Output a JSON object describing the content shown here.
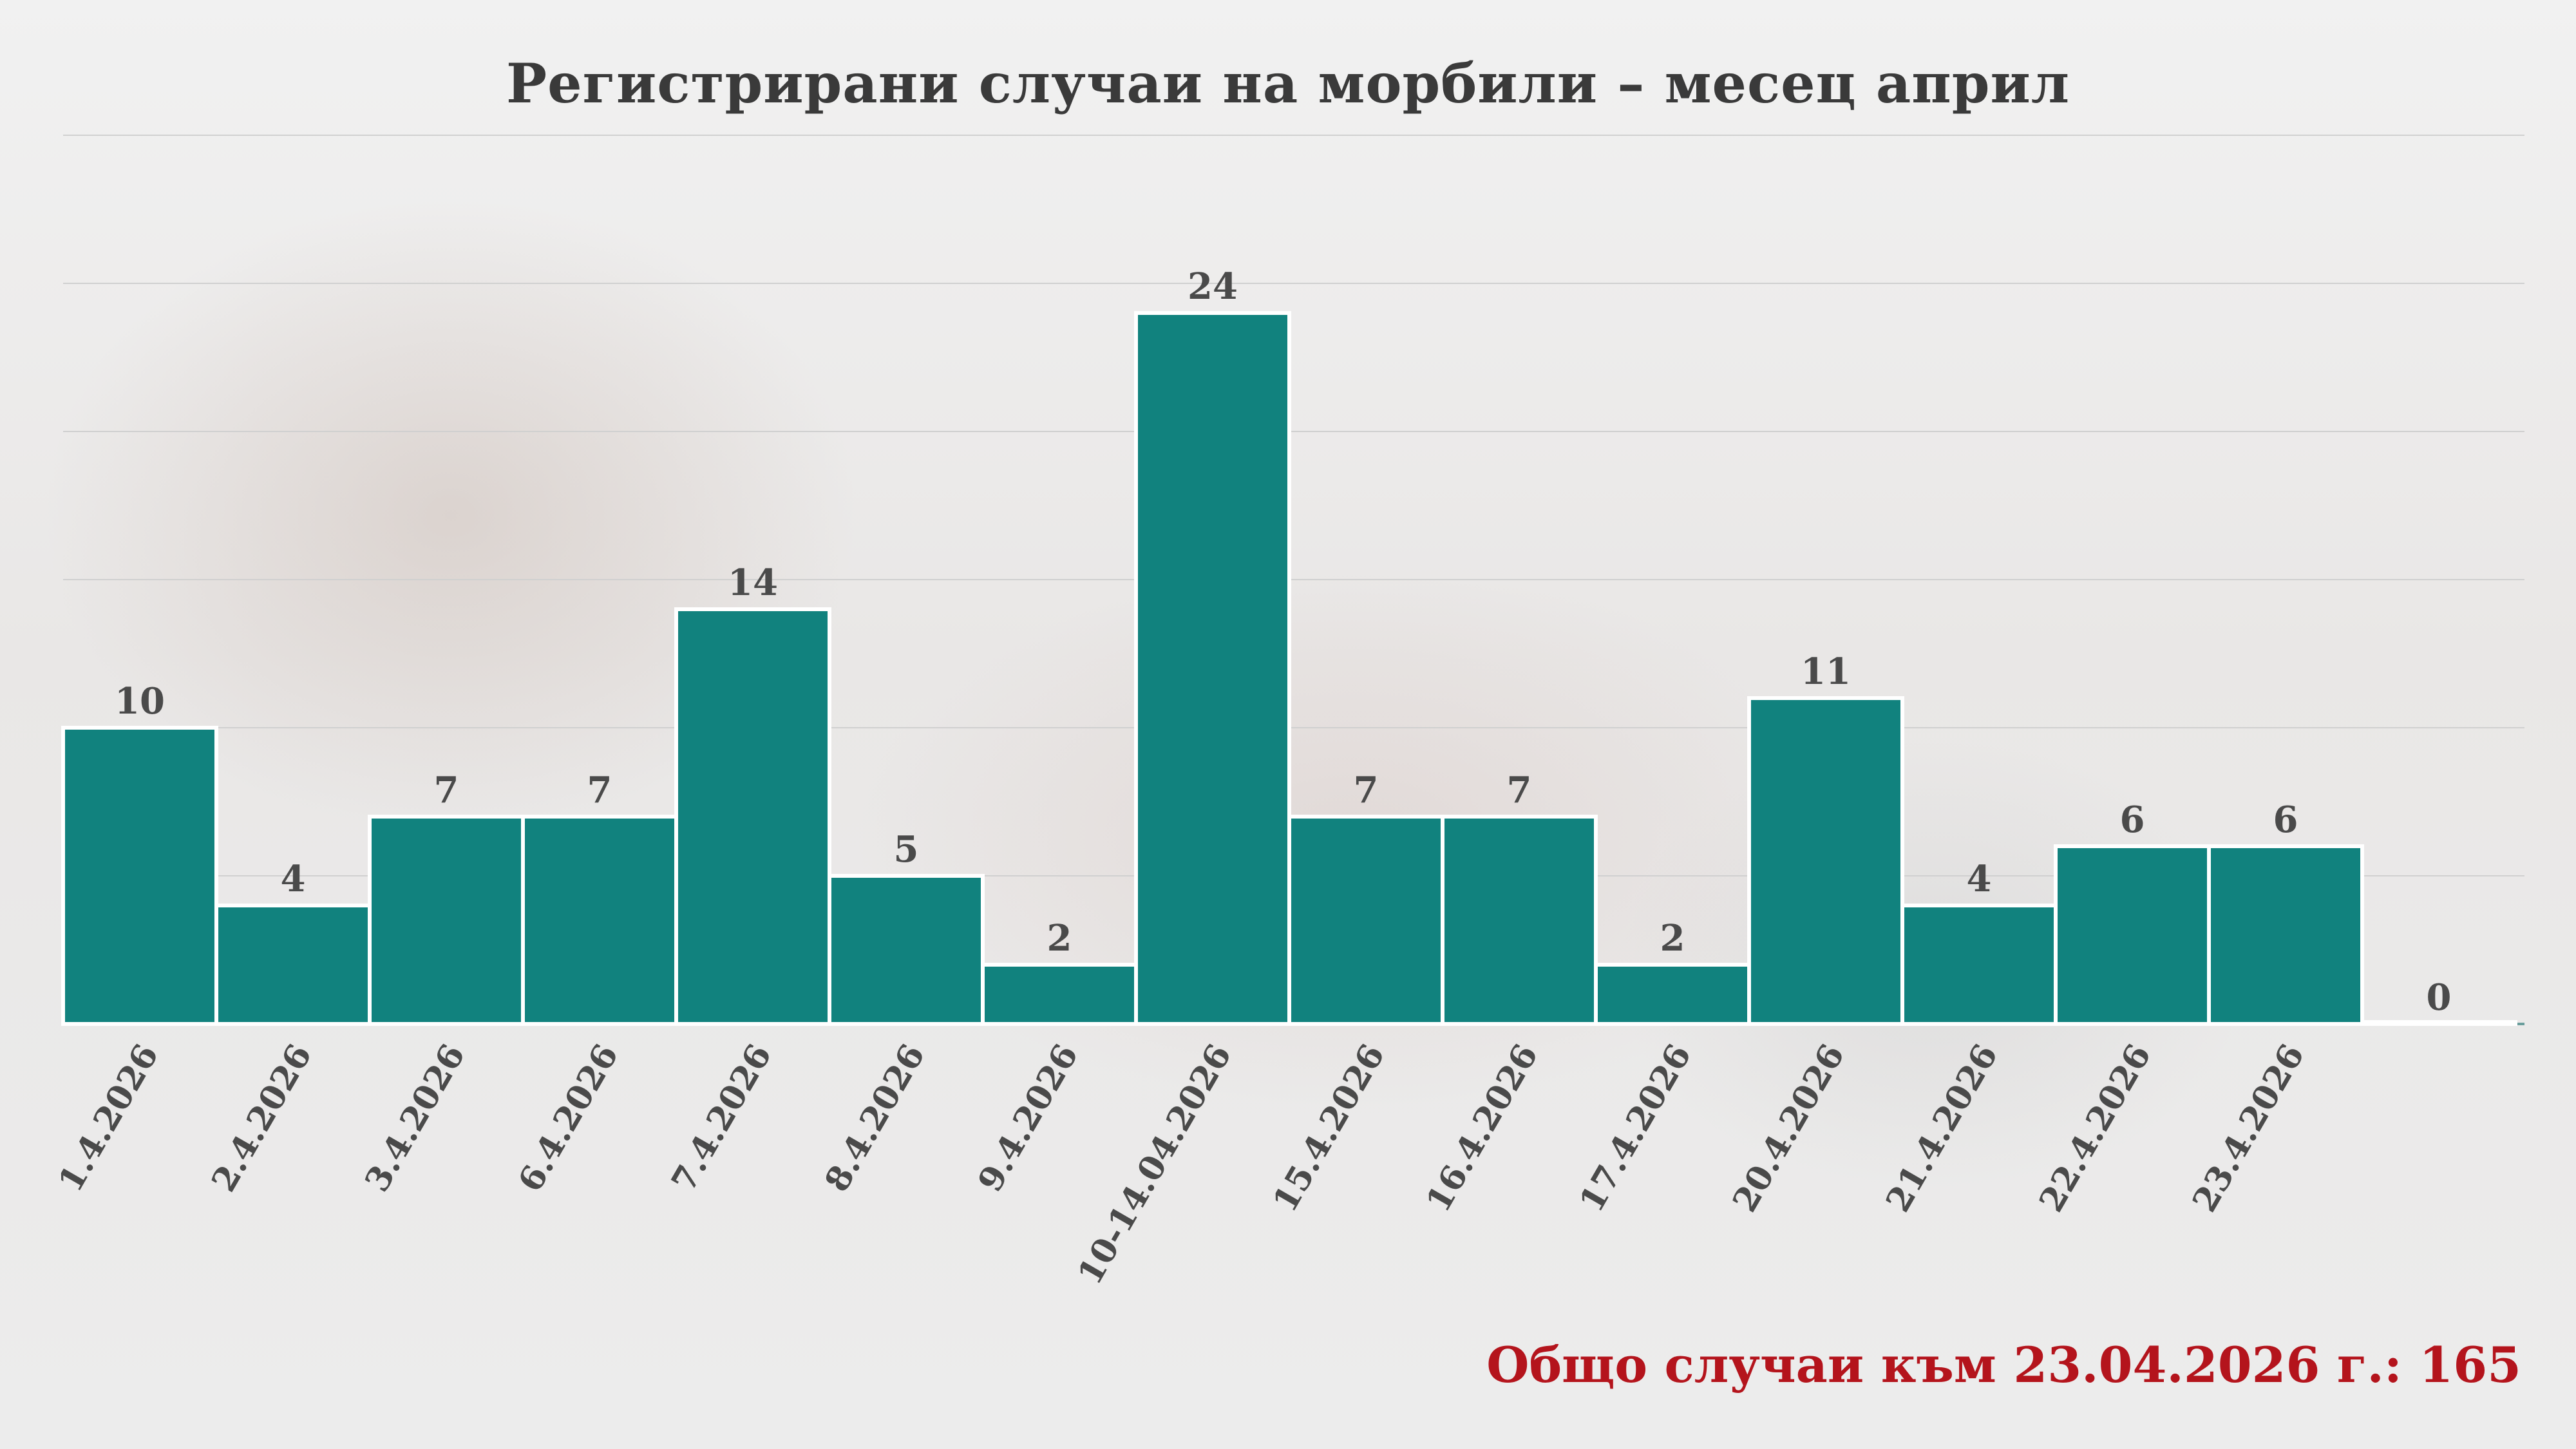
{
  "colors": {
    "bar_fill": "#11827e",
    "bar_stroke": "#ffffff",
    "value_label": "#4a4a4a",
    "tick_label": "#4a4a4a",
    "title": "#3a3a3a",
    "total_text": "#b4141c",
    "grid": "#d0d0d0"
  },
  "title": "Регистрирани случаи на морбили – месец април",
  "total_text": "Общо случаи към 23.04.2026 г.: 165",
  "chart_data": {
    "type": "bar",
    "title": "Регистрирани случаи на морбили – месец април",
    "xlabel": "",
    "ylabel": "",
    "categories": [
      "1.4.2026",
      "2.4.2026",
      "3.4.2026",
      "6.4.2026",
      "7.4.2026",
      "8.4.2026",
      "9.4.2026",
      "10-14.04.2026",
      "15.4.2026",
      "16.4.2026",
      "17.4.2026",
      "20.4.2026",
      "21.4.2026",
      "22.4.2026",
      "23.4.2026",
      ""
    ],
    "values": [
      10,
      4,
      7,
      7,
      14,
      5,
      2,
      24,
      7,
      7,
      2,
      11,
      4,
      6,
      6,
      0
    ],
    "ylim": [
      0,
      30
    ],
    "grid": true,
    "legend": "none",
    "data_labels": true
  }
}
